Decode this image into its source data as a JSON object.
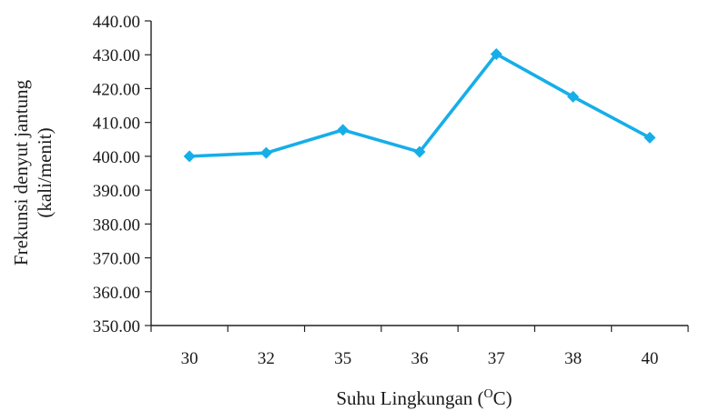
{
  "chart_data": {
    "type": "line",
    "categories": [
      "30",
      "32",
      "35",
      "36",
      "37",
      "38",
      "40"
    ],
    "series": [
      {
        "values": [
          400.0,
          401.0,
          407.8,
          401.3,
          430.2,
          417.6,
          405.5
        ]
      }
    ],
    "yticks": [
      "350.00",
      "360.00",
      "370.00",
      "380.00",
      "390.00",
      "400.00",
      "410.00",
      "420.00",
      "430.00",
      "440.00"
    ],
    "ylim": [
      350,
      440
    ],
    "xlabel": "Suhu Lingkungan (",
    "xlabel_sup": "O",
    "xlabel_suffix": "C)",
    "ylabel": [
      "Frekunsi denyut jantung",
      "(kali/menit)"
    ],
    "grid": false,
    "legend": "none",
    "colors": {
      "line": "#16aee8",
      "axis": "#222222",
      "text": "#1a1a1a"
    }
  }
}
